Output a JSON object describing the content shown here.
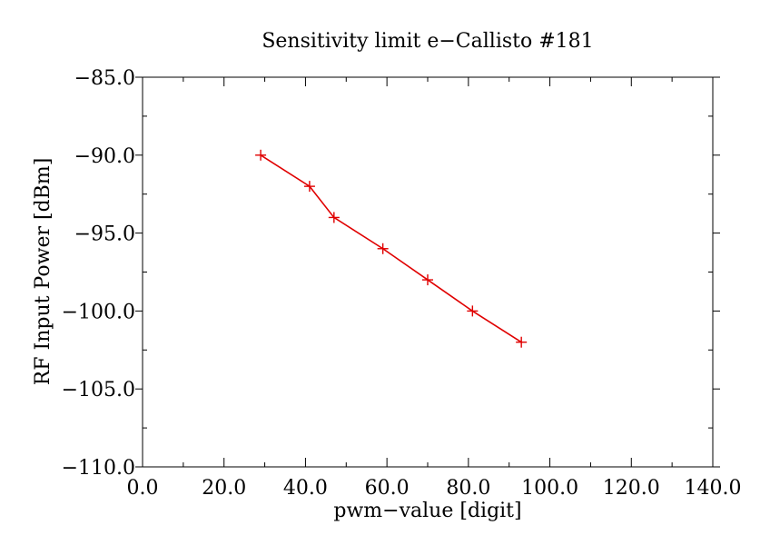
{
  "chart_data": {
    "type": "line",
    "title": "Sensitivity limit e−Callisto #181",
    "xlabel": "pwm−value [digit]",
    "ylabel": "RF Input Power [dBm]",
    "xlim": [
      0,
      140
    ],
    "ylim": [
      -110,
      -85
    ],
    "x_ticks": [
      0,
      20,
      40,
      60,
      80,
      100,
      120,
      140
    ],
    "x_tick_labels": [
      "0.0",
      "20.0",
      "40.0",
      "60.0",
      "80.0",
      "100.0",
      "120.0",
      "140.0"
    ],
    "y_ticks": [
      -85,
      -90,
      -95,
      -100,
      -105,
      -110
    ],
    "y_tick_labels": [
      "−85.0",
      "−90.0",
      "−95.0",
      "−100.0",
      "−105.0",
      "−110.0"
    ],
    "grid": false,
    "marker": "plus",
    "colors": {
      "series": "#e00000",
      "axes": "#000000",
      "background": "#ffffff"
    },
    "series": [
      {
        "x": [
          29,
          41,
          47,
          59,
          70,
          81,
          93
        ],
        "y": [
          -90,
          -92,
          -94,
          -96,
          -98,
          -100,
          -102
        ]
      }
    ]
  }
}
